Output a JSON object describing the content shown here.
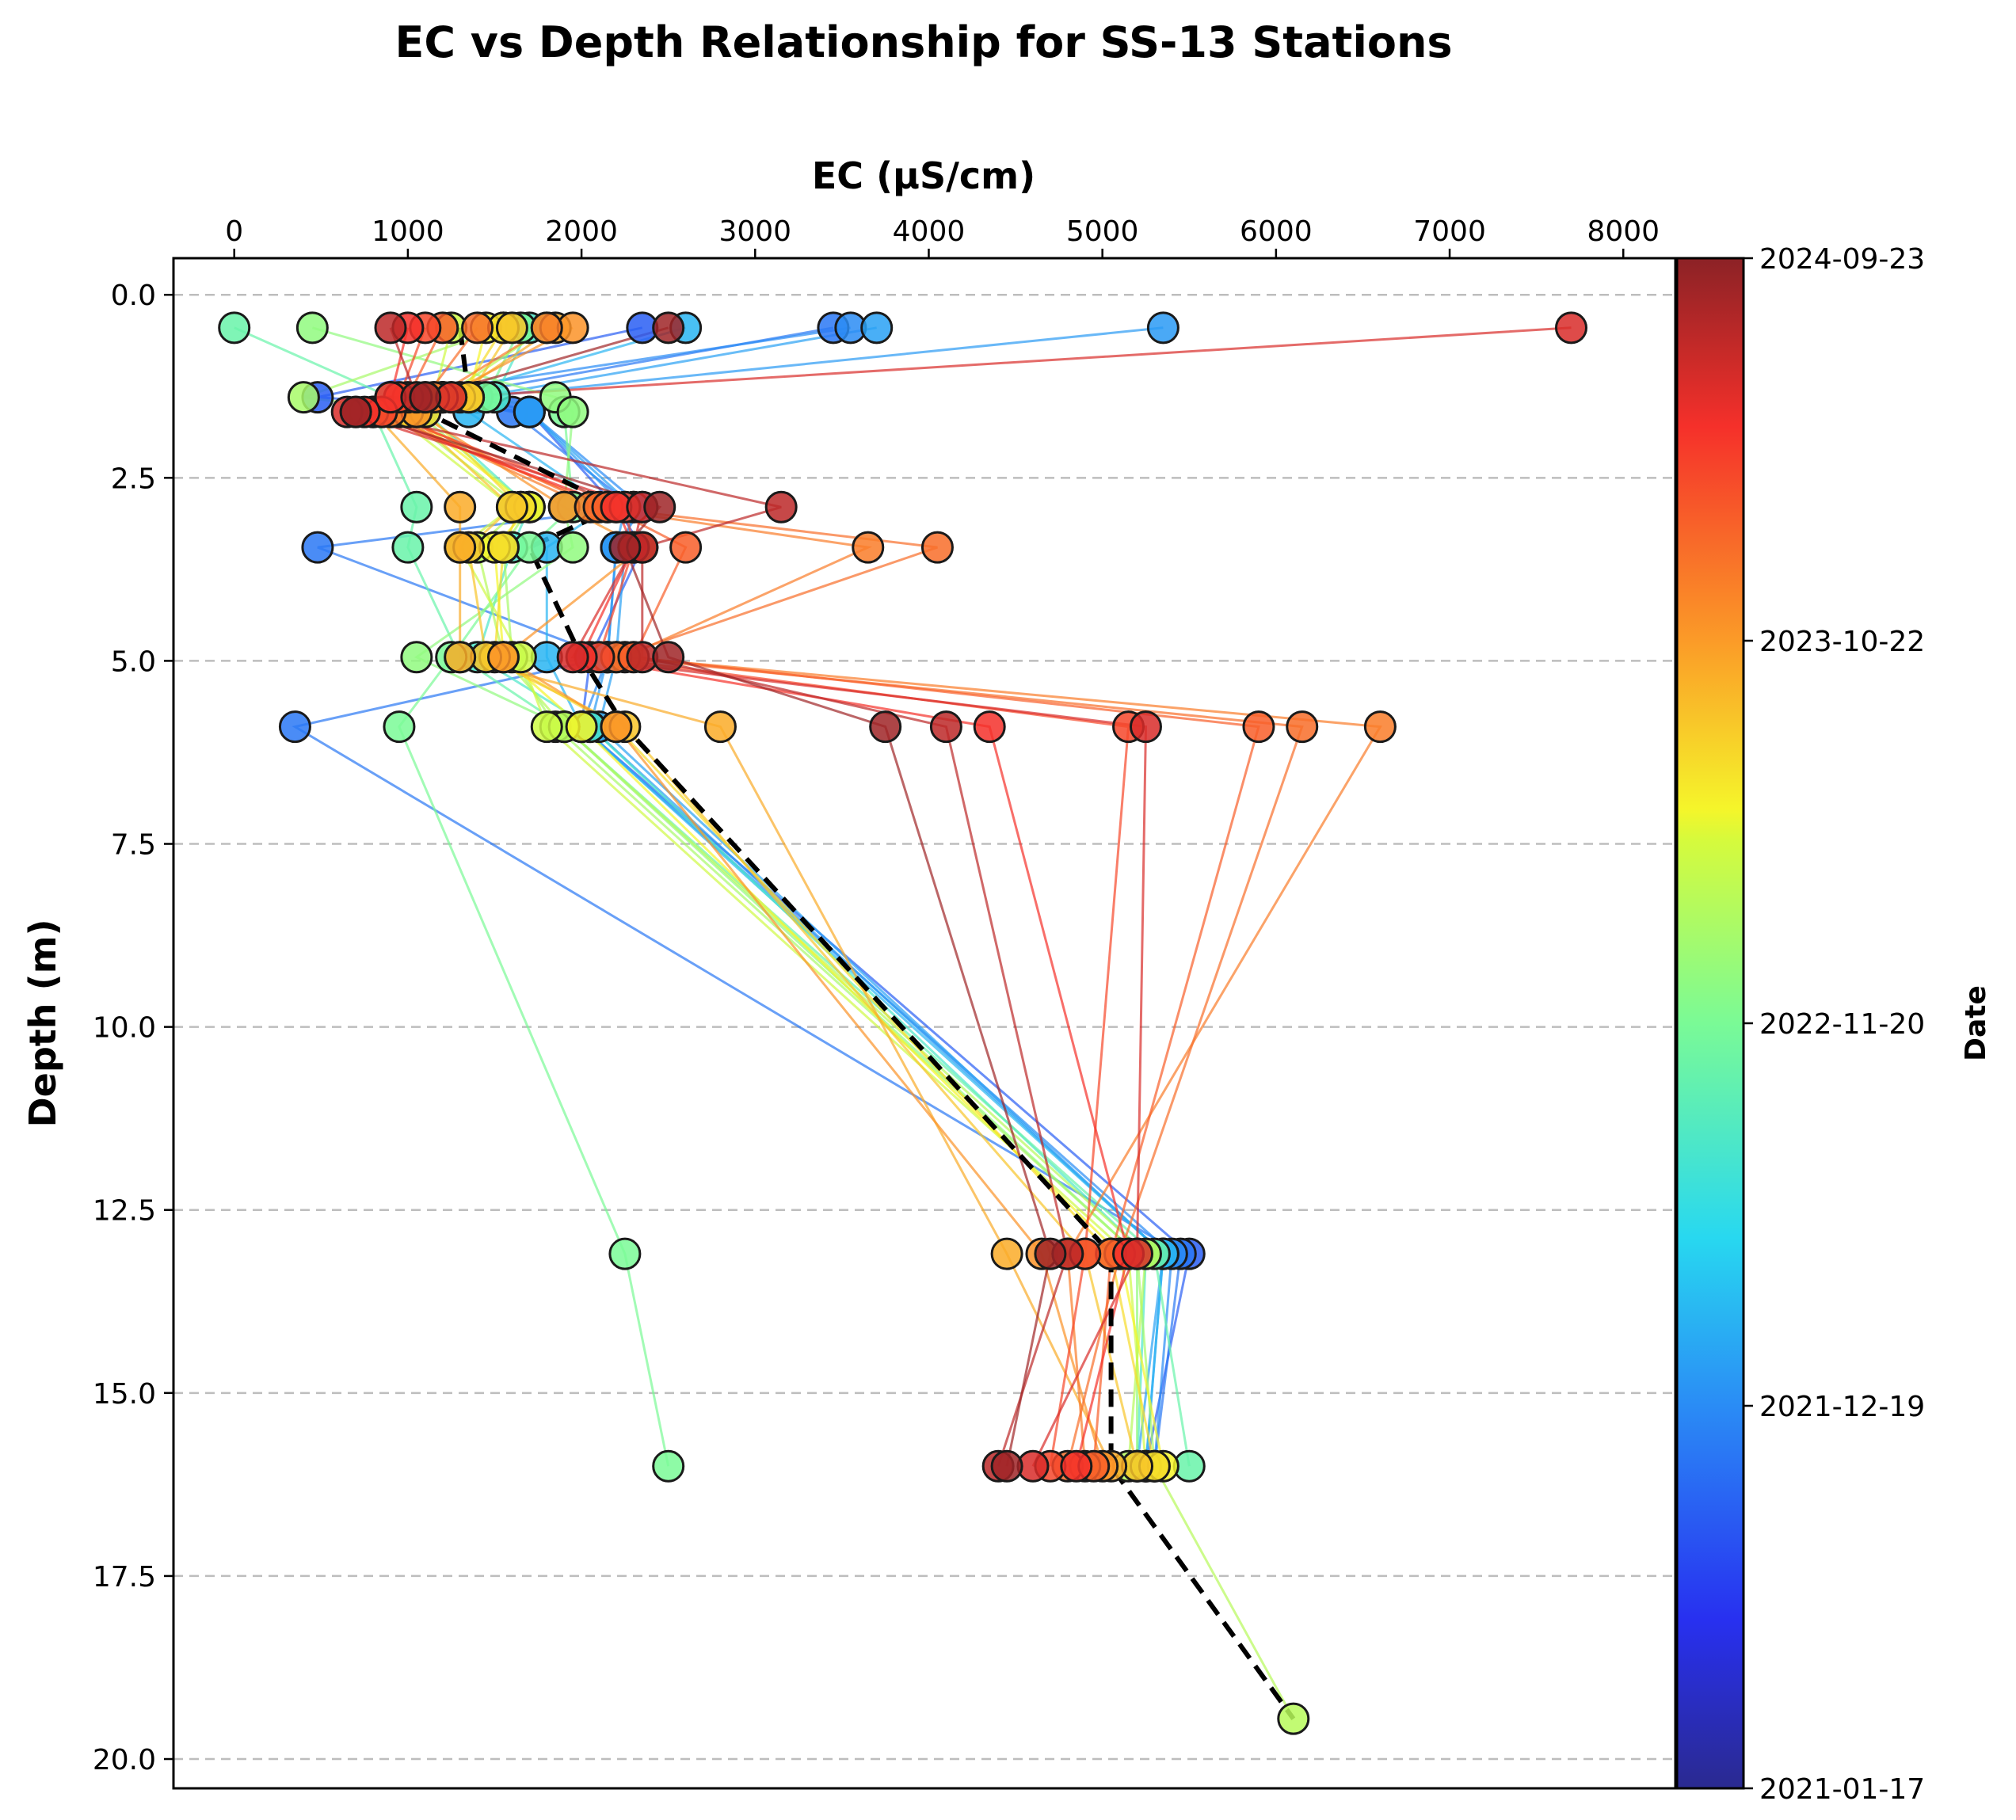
{
  "chart_data": {
    "type": "scatter",
    "title": "EC vs Depth Relationship for SS-13 Stations",
    "xlabel": "EC (μS/cm)",
    "ylabel": "Depth (m)",
    "xlim": [
      -350,
      8300
    ],
    "ylim": [
      20.4,
      -0.5
    ],
    "y_inverted": true,
    "x_axis_position": "top",
    "x_ticks": [
      0,
      1000,
      2000,
      3000,
      4000,
      5000,
      6000,
      7000,
      8000
    ],
    "y_ticks": [
      0.0,
      2.5,
      5.0,
      7.5,
      10.0,
      12.5,
      15.0,
      17.5,
      20.0
    ],
    "x_tick_labels": [
      "0",
      "1000",
      "2000",
      "3000",
      "4000",
      "5000",
      "6000",
      "7000",
      "8000"
    ],
    "y_tick_labels": [
      "0.0",
      "2.5",
      "5.0",
      "7.5",
      "10.0",
      "12.5",
      "15.0",
      "17.5",
      "20.0"
    ],
    "grid": "horizontal dashed",
    "colormap": "jet",
    "colorbar": {
      "label": "Date",
      "ticks": [
        "2024-09-23",
        "2023-10-22",
        "2022-11-20",
        "2021-12-19",
        "2021-01-17"
      ],
      "tick_fractions": [
        1.0,
        0.75,
        0.5,
        0.25,
        0.0
      ]
    },
    "depths": [
      0.45,
      1.4,
      1.6,
      2.9,
      3.45,
      4.95,
      5.9,
      13.1,
      16.0,
      19.45
    ],
    "station_depth_index": [
      0,
      1,
      2,
      3,
      4,
      5,
      6,
      7,
      8
    ],
    "profiles": [
      {
        "t": 0.18,
        "ec": [
          2350,
          480,
          1700,
          2200,
          2350,
          2050,
          2000,
          5500,
          5250
        ]
      },
      {
        "t": 0.22,
        "ec": [
          3450,
          1200,
          1600,
          2300,
          480,
          2150,
          350,
          5450,
          5300
        ]
      },
      {
        "t": 0.25,
        "ec": [
          3550,
          900,
          1700,
          2350,
          2200,
          2150,
          2000,
          5400,
          5300
        ]
      },
      {
        "t": 0.28,
        "ec": [
          3700,
          1400,
          1700,
          2300,
          2250,
          2200,
          2100,
          5350,
          5200
        ]
      },
      {
        "t": 0.27,
        "ec": [
          5350,
          1400,
          1700,
          2250,
          2200,
          2150,
          2050,
          5350,
          5250
        ]
      },
      {
        "t": 0.31,
        "ec": [
          2600,
          1200,
          1350,
          2150,
          1800,
          1800,
          2000,
          5350,
          5250
        ]
      },
      {
        "t": 0.42,
        "ec": [
          1700,
          1500,
          1100,
          1700,
          1600,
          1400,
          2050,
          5250,
          5200
        ]
      },
      {
        "t": 0.47,
        "ec": [
          0,
          900,
          800,
          1050,
          1000,
          1300,
          1900,
          5300,
          5500
        ]
      },
      {
        "t": 0.5,
        "ec": [
          1650,
          1450,
          1900,
          1950,
          1700,
          1250,
          950,
          2250,
          2500
        ]
      },
      {
        "t": 0.53,
        "ec": [
          450,
          1850,
          1950,
          1900,
          1950,
          1050,
          1900,
          5200,
          5200
        ]
      },
      {
        "t": 0.56,
        "ec": [
          1550,
          400,
          1050,
          1700,
          1550,
          1600,
          1850,
          5200,
          5300
        ]
      },
      {
        "t": 0.58,
        "ec": [
          1800,
          1200,
          950,
          1650,
          1400,
          1550,
          1900,
          5250,
          5150
        ]
      },
      {
        "t": 0.61,
        "ec": [
          1250,
          1150,
          900,
          1600,
          1300,
          1650,
          1800,
          5150,
          5250
        ]
      },
      {
        "t": 0.64,
        "ec": [
          1450,
          1350,
          1000,
          1700,
          1500,
          1550,
          2000,
          5100,
          5350
        ]
      },
      {
        "t": 0.67,
        "ec": [
          1550,
          1300,
          1100,
          1650,
          1550,
          1500,
          2200,
          5050,
          5300
        ]
      },
      {
        "t": 0.7,
        "ec": [
          1600,
          1350,
          1000,
          1600,
          1350,
          1450,
          2250,
          4900,
          5200
        ]
      },
      {
        "t": 0.73,
        "ec": [
          1850,
          1250,
          800,
          1300,
          1300,
          1300,
          2800,
          4450,
          5050
        ]
      },
      {
        "t": 0.76,
        "ec": [
          1950,
          1200,
          1050,
          1900,
          2350,
          1550,
          2200,
          4650,
          5000
        ]
      },
      {
        "t": 0.79,
        "ec": [
          1800,
          1150,
          850,
          2050,
          3650,
          2250,
          6600,
          4800,
          4900
        ]
      },
      {
        "t": 0.81,
        "ec": [
          1400,
          1100,
          900,
          2100,
          4050,
          2200,
          6150,
          5100,
          4800
        ]
      },
      {
        "t": 0.83,
        "ec": [
          1200,
          1000,
          800,
          2150,
          2600,
          2300,
          5900,
          5050,
          4950
        ]
      },
      {
        "t": 0.86,
        "ec": [
          1100,
          950,
          850,
          2250,
          2300,
          2100,
          5150,
          4900,
          4700
        ]
      },
      {
        "t": 0.89,
        "ec": [
          1000,
          900,
          750,
          2200,
          2300,
          2000,
          4350,
          5150,
          4850
        ]
      },
      {
        "t": 0.92,
        "ec": [
          7700,
          1250,
          650,
          2350,
          2300,
          1950,
          5250,
          5200,
          4600
        ]
      },
      {
        "t": 0.95,
        "ec": [
          900,
          1050,
          700,
          3150,
          2350,
          2350,
          4100,
          4800,
          4400
        ]
      },
      {
        "t": 0.98,
        "ec": [
          2500,
          1100,
          700,
          2450,
          2250,
          2500,
          3750,
          4700,
          4450
        ]
      }
    ],
    "deep_point": {
      "t": 0.58,
      "ec": 6100,
      "depth": 19.45,
      "from_ec": 5300,
      "from_depth": 16.0
    },
    "median_profile": {
      "style": "black dashed",
      "ec": [
        1300,
        1350,
        1100,
        2200,
        1700,
        2000,
        2250,
        5050,
        5050,
        6100
      ],
      "depth": [
        0.45,
        1.4,
        1.6,
        2.9,
        3.45,
        4.95,
        5.9,
        13.1,
        16.0,
        19.45
      ]
    }
  }
}
